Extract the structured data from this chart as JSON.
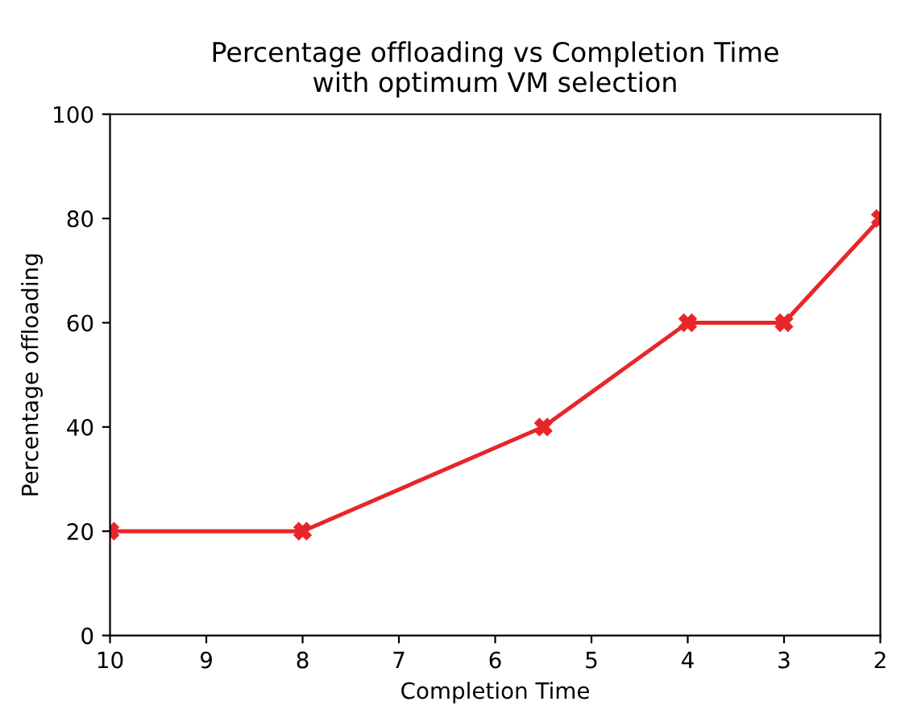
{
  "chart_data": {
    "type": "line",
    "title": "Percentage offloading vs Completion Time\nwith optimum VM selection",
    "xlabel": "Completion Time",
    "ylabel": "Percentage offloading",
    "x": [
      10,
      8,
      5.5,
      4,
      3,
      2
    ],
    "series": [
      {
        "color": "#e8262a",
        "values": [
          20,
          20,
          40,
          60,
          60,
          80
        ]
      }
    ],
    "xlim": [
      10,
      2
    ],
    "xticks": [
      10,
      9,
      8,
      7,
      6,
      5,
      4,
      3,
      2
    ],
    "ylim": [
      0,
      100
    ],
    "yticks": [
      0,
      20,
      40,
      60,
      80,
      100
    ],
    "marker": "cross",
    "line_style": "solid",
    "grid": false,
    "legend": false
  }
}
